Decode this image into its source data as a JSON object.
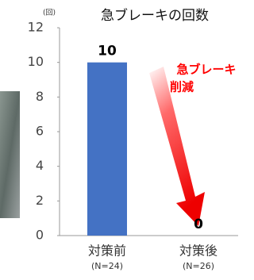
{
  "chart_data": {
    "type": "bar",
    "title": "急ブレーキの回数",
    "y_unit": "(回)",
    "categories": [
      "対策前",
      "対策後"
    ],
    "sample_sizes": [
      "(N=24)",
      "(N=26)"
    ],
    "values": [
      10,
      0
    ],
    "color": "#4472c4",
    "ylim": [
      0,
      12
    ],
    "yticks": [
      0,
      2,
      4,
      6,
      8,
      10,
      12
    ],
    "grid": false,
    "annotation": [
      "急ブレーキ",
      "削減"
    ]
  }
}
